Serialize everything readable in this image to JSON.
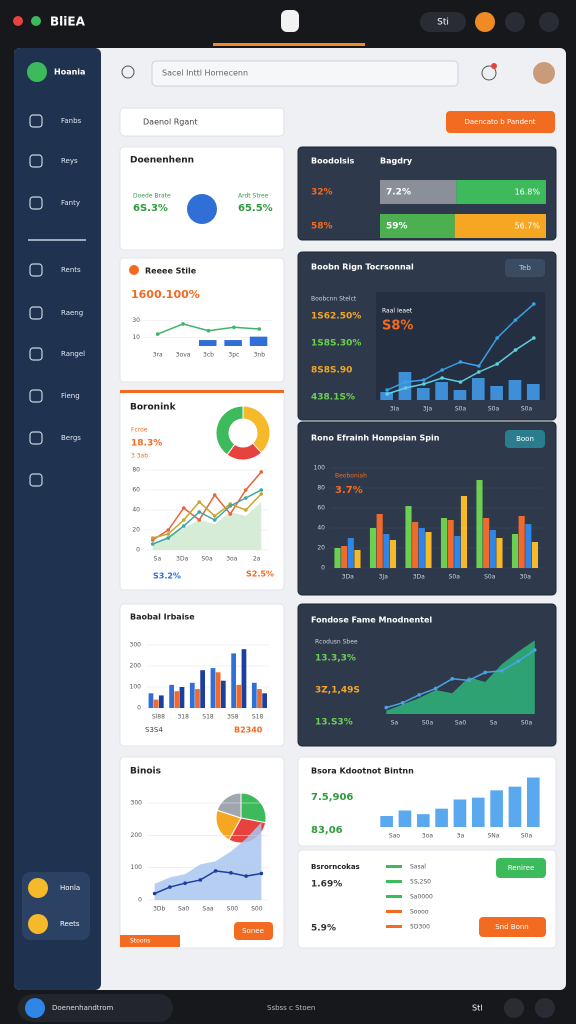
{
  "topbar": {
    "title": "BliEA",
    "menu": "Sti"
  },
  "sidebar": {
    "brand": "Hoania",
    "items": [
      "Fanbs",
      "Reys",
      "Fanty",
      "Rents",
      "Raeng",
      "Rangel",
      "Fieng",
      "Bergs"
    ],
    "footer": [
      "Honla",
      "Reets"
    ]
  },
  "header": {
    "search": "Sacel Inttl Hornecenn",
    "filter": "Daenol Rgant",
    "action": "Daencato b Pandent"
  },
  "summary": {
    "title": "Doenenhenn",
    "stats": [
      {
        "label": "Doede Brate",
        "value": "6S.3%"
      },
      {
        "label": "Ardt Stree",
        "value": "65.5%"
      }
    ]
  },
  "revenue": {
    "title": "Reeee Stile",
    "value": "1600.100%",
    "chart": {
      "ylim": [
        0,
        40
      ],
      "yticks": [
        10,
        30
      ],
      "xlabels": [
        "3ra",
        "3ova",
        "3cb",
        "3pc",
        "3nb"
      ],
      "series": [
        {
          "kind": "line",
          "color": "#3fb36b",
          "values": [
            14,
            26,
            18,
            22,
            20
          ]
        },
        {
          "kind": "bar",
          "color": "#2f6fd6",
          "values": [
            null,
            null,
            7,
            7,
            11
          ]
        }
      ]
    }
  },
  "breakdown": {
    "title": "Boronink",
    "lines": [
      "Fcroe",
      "18.3%",
      "3.3ab"
    ],
    "footer": [
      "S3.2%",
      "S2.5%"
    ],
    "donut": {
      "values": [
        38,
        22,
        40
      ],
      "colors": [
        "#f5b92a",
        "#e8423f",
        "#3dbb5c"
      ]
    },
    "chart": {
      "ylim": [
        0,
        80
      ],
      "yticks": [
        0,
        20,
        40,
        60,
        80
      ],
      "xlabels": [
        "Sa",
        "3Da",
        "S0a",
        "3oa",
        "2a"
      ],
      "series": [
        {
          "kind": "area",
          "color": "#cfe9cf",
          "values": [
            6,
            14,
            22,
            30,
            26,
            38,
            34,
            48
          ]
        },
        {
          "kind": "line",
          "color": "#e8623a",
          "values": [
            10,
            20,
            42,
            30,
            55,
            36,
            60,
            78
          ]
        },
        {
          "kind": "line",
          "color": "#c7a42a",
          "values": [
            12,
            16,
            30,
            48,
            34,
            46,
            40,
            56
          ]
        },
        {
          "kind": "line",
          "color": "#3ba7a0",
          "values": [
            6,
            12,
            24,
            38,
            30,
            44,
            52,
            60
          ]
        }
      ]
    }
  },
  "bars": {
    "title": "Baobal Irbaise",
    "footer": [
      "S3S4",
      "B2340"
    ],
    "chart": {
      "ylim": [
        0,
        300
      ],
      "yticks": [
        0,
        100,
        200,
        300
      ],
      "xlabels": [
        "Sl88",
        "318",
        "S18",
        "3S8",
        "S18"
      ],
      "series": [
        {
          "kind": "bar",
          "color": "#2f6fd6",
          "values": [
            70,
            110,
            120,
            190,
            260,
            120
          ]
        },
        {
          "kind": "bar",
          "color": "#f06a2b",
          "values": [
            40,
            80,
            90,
            170,
            110,
            90
          ]
        },
        {
          "kind": "bar",
          "color": "#1c3f9e",
          "values": [
            60,
            100,
            180,
            130,
            280,
            70
          ]
        }
      ]
    }
  },
  "growth": {
    "title": "Binois",
    "footer": "Stoons",
    "button": "Sonee",
    "pie": {
      "values": [
        28,
        30,
        22,
        20
      ],
      "colors": [
        "#3dbb5c",
        "#e8423f",
        "#f5a623",
        "#a0a6ae"
      ]
    },
    "chart": {
      "ylim": [
        0,
        300
      ],
      "yticks": [
        0,
        100,
        200,
        300
      ],
      "xlabels": [
        "3Db",
        "Sa0",
        "Saa",
        "S00",
        "S00"
      ],
      "series": [
        {
          "kind": "area",
          "color": "#a9c6ee",
          "values": [
            50,
            70,
            80,
            110,
            120,
            150,
            190,
            240
          ]
        },
        {
          "kind": "line",
          "color": "#1c3f9e",
          "values": [
            20,
            40,
            52,
            62,
            90,
            84,
            74,
            82
          ]
        }
      ]
    }
  },
  "ratio": {
    "title": "Boodolsis",
    "subtitle": "Bagdry",
    "rows": [
      {
        "label": "32%",
        "left": "7.2%",
        "right": "16.8%",
        "segments": [
          46,
          54
        ],
        "colors": [
          "#8a8f98",
          "#3dbb5c"
        ]
      },
      {
        "label": "58%",
        "left": "59%",
        "right": "56.7%",
        "segments": [
          45,
          55
        ],
        "colors": [
          "#4caf50",
          "#f5a623"
        ]
      }
    ]
  },
  "trend": {
    "title": "Boobn Rign Tocrsonnal",
    "button": "Teb",
    "caption": "Boobcnn Stelct",
    "stats": [
      "1S62.50%",
      "1S8S.30%",
      "8S8S.90",
      "438.1S%"
    ],
    "chart_title": "Raal Ieaet",
    "big": "S8%",
    "chart": {
      "ylim": [
        0,
        100
      ],
      "xlabels": [
        "3Ia",
        "3Ja",
        "S0a",
        "S0a",
        "S0a"
      ],
      "series": [
        {
          "kind": "bar",
          "color": "#3f8fd8",
          "values": [
            8,
            28,
            12,
            18,
            10,
            22,
            14,
            20,
            16
          ]
        },
        {
          "kind": "line",
          "color": "#3aa0e8",
          "values": [
            10,
            18,
            20,
            30,
            38,
            34,
            62,
            80,
            96
          ]
        },
        {
          "kind": "line",
          "color": "#5fd0e0",
          "values": [
            6,
            12,
            16,
            22,
            18,
            28,
            36,
            50,
            62
          ]
        }
      ]
    }
  },
  "spread": {
    "title": "Rono Efrainh Hompsian Spin",
    "button": "Boon",
    "tag": "Beoboniah",
    "big": "3.7%",
    "chart": {
      "ylim": [
        0,
        100
      ],
      "yticks": [
        0,
        20,
        40,
        60,
        80,
        100
      ],
      "xlabels": [
        "3Da",
        "3Ja",
        "3Da",
        "S0a",
        "S0a",
        "30a"
      ],
      "series": [
        {
          "kind": "bar",
          "color": "#6ccf52",
          "values": [
            20,
            40,
            62,
            50,
            88,
            34
          ]
        },
        {
          "kind": "bar",
          "color": "#f06a2b",
          "values": [
            22,
            54,
            46,
            48,
            50,
            52
          ]
        },
        {
          "kind": "bar",
          "color": "#2f86e8",
          "values": [
            30,
            34,
            40,
            32,
            38,
            44
          ]
        },
        {
          "kind": "bar",
          "color": "#f5b92a",
          "values": [
            18,
            28,
            36,
            72,
            30,
            26
          ]
        }
      ]
    }
  },
  "flow": {
    "title": "Fondose Fame Mnodnentel",
    "caption": "Rcodusn Sbee",
    "stats": [
      "13.3,3%",
      "3Z,1,49S",
      "13.S3%"
    ],
    "chart": {
      "ylim": [
        0,
        100
      ],
      "xlabels": [
        "Sa",
        "S0a",
        "Sa0",
        "Sa",
        "S0a"
      ],
      "series": [
        {
          "kind": "area",
          "color": "#2fb57a",
          "values": [
            4,
            12,
            20,
            30,
            26,
            46,
            40,
            62,
            78,
            92
          ]
        },
        {
          "kind": "line",
          "color": "#4aa3e8",
          "values": [
            8,
            14,
            24,
            32,
            44,
            42,
            52,
            54,
            66,
            80
          ]
        }
      ]
    }
  },
  "volume": {
    "title": "Bsora Kdootnot Bintnn",
    "stats": [
      "7.5,906",
      "83,06"
    ],
    "chart": {
      "ylim": [
        0,
        60
      ],
      "xlabels": [
        "Sao",
        "3oa",
        "3a",
        "SNa",
        "S0a"
      ],
      "series": [
        {
          "kind": "bar",
          "color": "#5aa9ee",
          "values": [
            12,
            18,
            14,
            20,
            30,
            32,
            40,
            44,
            54
          ]
        }
      ]
    }
  },
  "records": {
    "title": "Bsrorncokas",
    "stats": [
      "1.69%",
      "5.9%"
    ],
    "list": [
      "Sasal",
      "5S,2S0",
      "Sa0000",
      "Soooo",
      "5D300"
    ],
    "buttons": [
      "Reniree",
      "Snd Bonn"
    ]
  },
  "bottombar": {
    "left": "Doenenhandtrom",
    "center": "Ssbss c Stoen",
    "right": "Stl"
  }
}
